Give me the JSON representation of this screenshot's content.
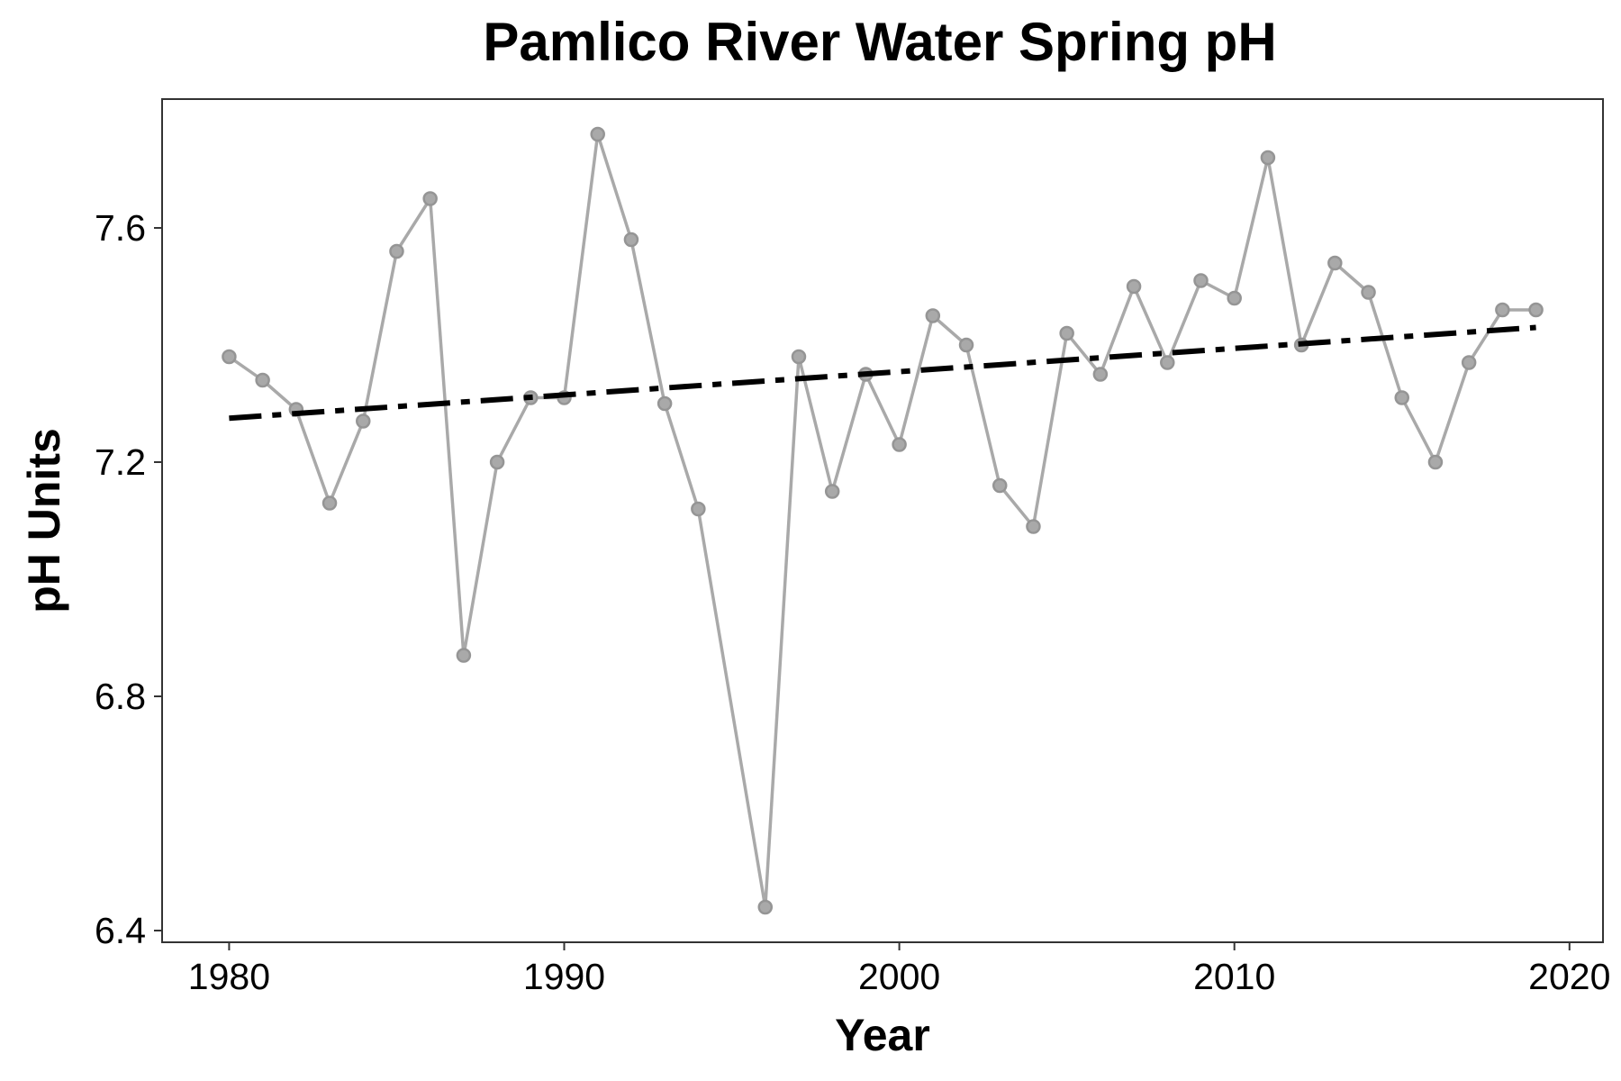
{
  "chart_data": {
    "type": "line",
    "title": "Pamlico River Water Spring pH",
    "xlabel": "Year",
    "ylabel": "pH Units",
    "xlim": [
      1978,
      2021
    ],
    "ylim": [
      6.38,
      7.82
    ],
    "x_ticks": [
      1980,
      1990,
      2000,
      2010,
      2020
    ],
    "y_ticks": [
      6.4,
      6.8,
      7.2,
      7.6
    ],
    "x_tick_labels": [
      "1980",
      "1990",
      "2000",
      "2010",
      "2020"
    ],
    "y_tick_labels": [
      "6.4",
      "6.8",
      "7.2",
      "7.6"
    ],
    "grid": false,
    "legend": "none",
    "series": [
      {
        "color": "#a9a9a9",
        "x": [
          1980,
          1981,
          1982,
          1983,
          1984,
          1985,
          1986,
          1987,
          1988,
          1989,
          1990,
          1991,
          1992,
          1993,
          1994,
          1996,
          1997,
          1998,
          1999,
          2000,
          2001,
          2002,
          2003,
          2004,
          2005,
          2006,
          2007,
          2008,
          2009,
          2010,
          2011,
          2012,
          2013,
          2014,
          2015,
          2016,
          2017,
          2018,
          2019
        ],
        "y": [
          7.38,
          7.34,
          7.29,
          7.13,
          7.27,
          7.56,
          7.65,
          6.87,
          7.2,
          7.31,
          7.31,
          7.76,
          7.58,
          7.3,
          7.12,
          6.44,
          7.38,
          7.15,
          7.35,
          7.23,
          7.45,
          7.4,
          7.16,
          7.09,
          7.42,
          7.35,
          7.5,
          7.37,
          7.51,
          7.48,
          7.72,
          7.4,
          7.54,
          7.49,
          7.31,
          7.2,
          7.37,
          7.46,
          7.46
        ]
      }
    ],
    "trend_line": {
      "color": "#000000",
      "style": "dashed",
      "x": [
        1980,
        2019
      ],
      "y": [
        7.275,
        7.43
      ]
    }
  }
}
